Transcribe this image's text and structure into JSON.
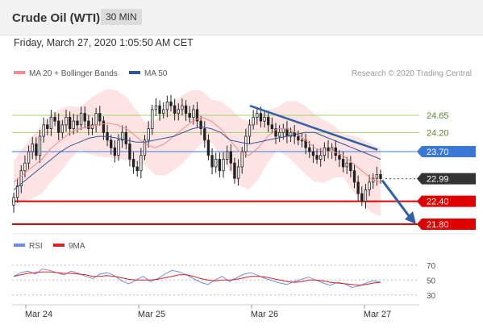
{
  "header": {
    "title": "Crude Oil (WTI)",
    "timeframe": "30 MIN"
  },
  "datetime": "Friday, March 27, 2020 1:05:50 AM CET",
  "legend": {
    "bollinger": "MA 20 + Bollinger Bands",
    "ma50": "MA 50",
    "research": "Research © 2020 Trading Central"
  },
  "rsi_legend": {
    "rsi": "RSI",
    "ma": "9MA"
  },
  "colors": {
    "ma20": "#f28b8b",
    "bollinger_fill": "#fde3e3",
    "ma50": "#2f5597",
    "resistance_green": "#a5cf6d",
    "pivot_blue": "#3a78d8",
    "support_red": "#e00000",
    "price_dark": "#333333",
    "arrow": "#2f5fa8",
    "rsi": "#6b8ee6",
    "rsi_ma": "#e02020"
  },
  "chart_data": {
    "type": "candlestick",
    "x_labels": [
      "Mar 24",
      "Mar 25",
      "Mar 26",
      "Mar 27"
    ],
    "price_range": [
      21.5,
      25.6
    ],
    "levels": [
      {
        "value": 24.65,
        "label": "24.65",
        "kind": "resistance"
      },
      {
        "value": 24.2,
        "label": "24.20",
        "kind": "resistance"
      },
      {
        "value": 23.7,
        "label": "23.70",
        "kind": "pivot"
      },
      {
        "value": 22.99,
        "label": "22.99",
        "kind": "last"
      },
      {
        "value": 22.4,
        "label": "22.40",
        "kind": "support"
      },
      {
        "value": 21.8,
        "label": "21.80",
        "kind": "support"
      }
    ],
    "candles": [
      22.5,
      22.8,
      23.2,
      23.4,
      23.7,
      23.9,
      23.6,
      24.1,
      24.4,
      24.3,
      24.6,
      24.5,
      24.2,
      24.4,
      24.6,
      24.3,
      24.5,
      24.4,
      24.7,
      24.5,
      24.3,
      24.4,
      24.7,
      24.5,
      24.2,
      24.0,
      23.8,
      23.6,
      24.0,
      24.2,
      23.9,
      23.5,
      23.3,
      23.2,
      23.6,
      24.0,
      24.3,
      24.8,
      24.9,
      24.7,
      24.8,
      25.0,
      24.9,
      24.7,
      24.8,
      24.9,
      24.7,
      24.6,
      24.8,
      24.5,
      24.3,
      24.0,
      23.6,
      23.3,
      23.5,
      23.2,
      23.5,
      23.7,
      23.4,
      23.0,
      23.3,
      23.7,
      24.1,
      24.4,
      24.6,
      24.7,
      24.5,
      24.6,
      24.4,
      24.3,
      24.1,
      24.2,
      24.3,
      24.1,
      24.2,
      24.1,
      24.0,
      24.0,
      23.8,
      23.7,
      23.6,
      23.5,
      23.6,
      23.8,
      23.7,
      23.8,
      23.6,
      23.5,
      23.3,
      23.4,
      23.2,
      22.9,
      22.6,
      22.4,
      22.7,
      22.9,
      23.0,
      23.1,
      22.99
    ],
    "ma20": [
      22.9,
      23.1,
      23.3,
      23.5,
      23.8,
      24.0,
      24.2,
      24.3,
      24.35,
      24.4,
      24.45,
      24.4,
      24.3,
      24.1,
      23.9,
      23.8,
      23.9,
      24.1,
      24.3,
      24.5,
      24.6,
      24.5,
      24.3,
      24.0,
      23.7,
      23.6,
      23.8,
      24.1,
      24.3,
      24.3,
      24.2,
      24.0,
      23.8,
      23.7,
      23.7,
      23.6,
      23.4,
      23.2,
      23.0,
      22.9
    ],
    "ma50": [
      22.7,
      22.9,
      23.1,
      23.3,
      23.5,
      23.7,
      23.85,
      23.95,
      24.05,
      24.1,
      24.1,
      24.05,
      24.0,
      23.95,
      23.95,
      24.0,
      24.05,
      24.1,
      24.2,
      24.3,
      24.35,
      24.3,
      24.2,
      24.0,
      23.95,
      23.9,
      23.95,
      24.0,
      24.05,
      24.1,
      24.15,
      24.2,
      24.2,
      24.1,
      24.0,
      23.9,
      23.8,
      23.7,
      23.6,
      23.5
    ],
    "forecast": {
      "from": 22.99,
      "to": 21.8
    },
    "rsi": {
      "levels": [
        70,
        50,
        30
      ],
      "rsi": [
        55,
        60,
        62,
        58,
        65,
        63,
        60,
        57,
        62,
        59,
        55,
        52,
        58,
        60,
        56,
        49,
        45,
        50,
        55,
        48,
        52,
        58,
        63,
        61,
        57,
        52,
        47,
        44,
        50,
        55,
        48,
        53,
        58,
        60,
        56,
        52,
        49,
        46,
        44,
        48,
        51,
        54,
        50,
        46,
        43,
        47,
        45,
        40,
        42,
        46,
        49,
        47
      ],
      "ma": [
        55,
        57,
        59,
        60,
        61,
        61,
        60,
        59,
        59,
        58,
        57,
        55,
        55,
        56,
        55,
        53,
        51,
        50,
        50,
        50,
        51,
        53,
        55,
        57,
        57,
        55,
        52,
        50,
        49,
        50,
        50,
        51,
        53,
        55,
        55,
        54,
        52,
        50,
        48,
        47,
        48,
        50,
        50,
        49,
        47,
        46,
        45,
        44,
        43,
        44,
        46,
        47
      ]
    }
  }
}
